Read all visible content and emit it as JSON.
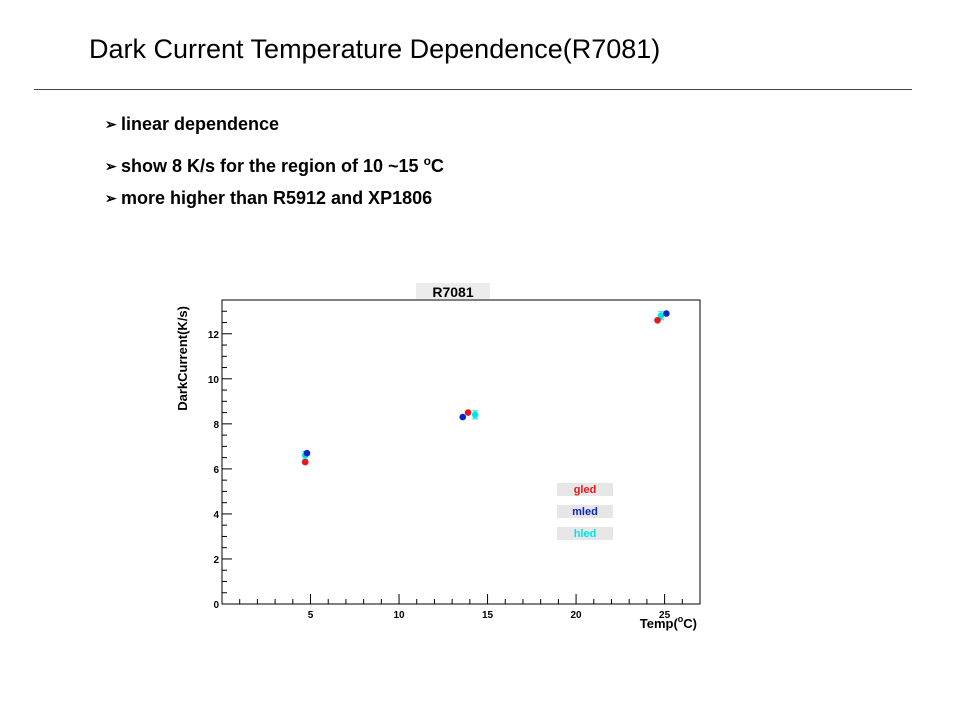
{
  "slide": {
    "title": "Dark Current Temperature Dependence(R7081)",
    "bullets": [
      {
        "parts": [
          "linear dependence"
        ]
      },
      {
        "parts": [
          "show  8 K/s for the region of 10 ~15 ",
          "o",
          "C"
        ]
      },
      {
        "parts": [
          "more higher than R5912 and XP1806"
        ]
      }
    ]
  },
  "chart_data": {
    "type": "scatter",
    "title": "R7081",
    "xlabel": "Temp(",
    "xlabel_sup": "o",
    "xlabel_end": "C)",
    "ylabel": "DarkCurrent(K/s)",
    "xlim": [
      0,
      27
    ],
    "ylim": [
      0,
      13.5
    ],
    "xticks": [
      5,
      10,
      15,
      20,
      25
    ],
    "yticks": [
      0,
      2,
      4,
      6,
      8,
      10,
      12
    ],
    "grid": false,
    "legend_position": "lower-right",
    "series": [
      {
        "name": "gled",
        "color": "#e8161b",
        "x": [
          4.7,
          13.9,
          24.6
        ],
        "y": [
          6.3,
          8.5,
          12.6
        ]
      },
      {
        "name": "mled",
        "color": "#0b24c9",
        "x": [
          4.8,
          13.6,
          25.1
        ],
        "y": [
          6.7,
          8.3,
          12.9
        ]
      },
      {
        "name": "hled",
        "color": "#00e5e5",
        "x": [
          4.7,
          14.3,
          24.8
        ],
        "y": [
          6.6,
          8.4,
          12.8
        ]
      }
    ]
  }
}
